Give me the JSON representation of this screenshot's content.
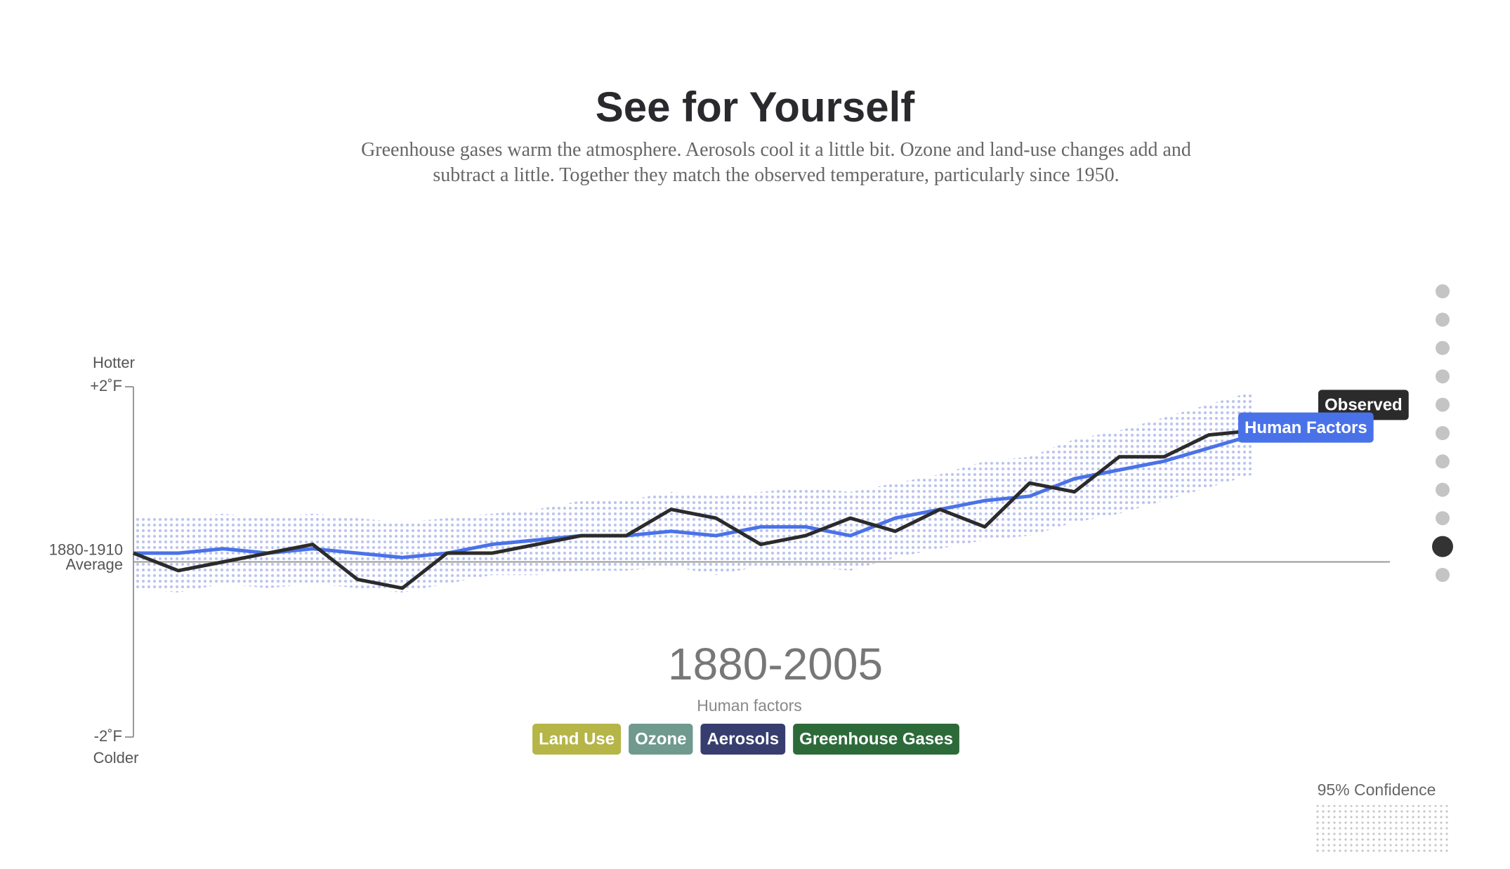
{
  "chart_data": {
    "type": "line",
    "title": "See for Yourself",
    "subtitle": "Greenhouse gases warm the atmosphere. Aerosols cool it a little bit. Ozone and land-use changes add and subtract a little. Together they match the observed temperature, particularly since 1950.",
    "y_top_label": "Hotter",
    "y_bottom_label": "Colder",
    "ylim": [
      -2,
      2
    ],
    "yticks": [
      {
        "value": -2,
        "label": "-2˚F"
      },
      {
        "value": 0,
        "label": "1880-1910 Average"
      },
      {
        "value": 2,
        "label": "+2˚F"
      }
    ],
    "xlim": [
      1880,
      2005
    ],
    "x": [
      1880,
      1885,
      1890,
      1895,
      1900,
      1905,
      1910,
      1915,
      1920,
      1925,
      1930,
      1935,
      1940,
      1945,
      1950,
      1955,
      1960,
      1965,
      1970,
      1975,
      1980,
      1985,
      1990,
      1995,
      2000,
      2005
    ],
    "series": [
      {
        "name": "Observed",
        "color": "#2b2b2b",
        "values": [
          0.1,
          -0.1,
          0.0,
          0.1,
          0.2,
          -0.2,
          -0.3,
          0.1,
          0.1,
          0.2,
          0.3,
          0.3,
          0.6,
          0.5,
          0.2,
          0.3,
          0.5,
          0.35,
          0.6,
          0.4,
          0.9,
          0.8,
          1.2,
          1.2,
          1.45,
          1.5
        ]
      },
      {
        "name": "Human Factors",
        "color": "#4a72e8",
        "values": [
          0.1,
          0.1,
          0.15,
          0.1,
          0.15,
          0.1,
          0.05,
          0.1,
          0.2,
          0.25,
          0.3,
          0.3,
          0.35,
          0.3,
          0.4,
          0.4,
          0.3,
          0.5,
          0.6,
          0.7,
          0.75,
          0.95,
          1.05,
          1.15,
          1.3,
          1.45
        ]
      }
    ],
    "band": {
      "name": "95% Confidence",
      "color": "#b9c3ef",
      "lower": [
        -0.3,
        -0.35,
        -0.25,
        -0.3,
        -0.25,
        -0.3,
        -0.35,
        -0.25,
        -0.15,
        -0.15,
        -0.1,
        -0.1,
        -0.05,
        -0.15,
        -0.05,
        -0.05,
        -0.1,
        0.05,
        0.15,
        0.25,
        0.3,
        0.45,
        0.55,
        0.7,
        0.85,
        1.0
      ],
      "upper": [
        0.5,
        0.5,
        0.55,
        0.5,
        0.55,
        0.5,
        0.45,
        0.5,
        0.55,
        0.6,
        0.7,
        0.7,
        0.8,
        0.75,
        0.8,
        0.85,
        0.8,
        0.9,
        1.0,
        1.15,
        1.2,
        1.4,
        1.5,
        1.65,
        1.8,
        1.95
      ]
    },
    "period_label": "1880-2005",
    "factors_label": "Human factors",
    "factors": [
      {
        "name": "Land Use",
        "color": "#b5b548"
      },
      {
        "name": "Ozone",
        "color": "#6f9a8d"
      },
      {
        "name": "Aerosols",
        "color": "#373d6e"
      },
      {
        "name": "Greenhouse Gases",
        "color": "#2d6a3a"
      }
    ]
  }
}
